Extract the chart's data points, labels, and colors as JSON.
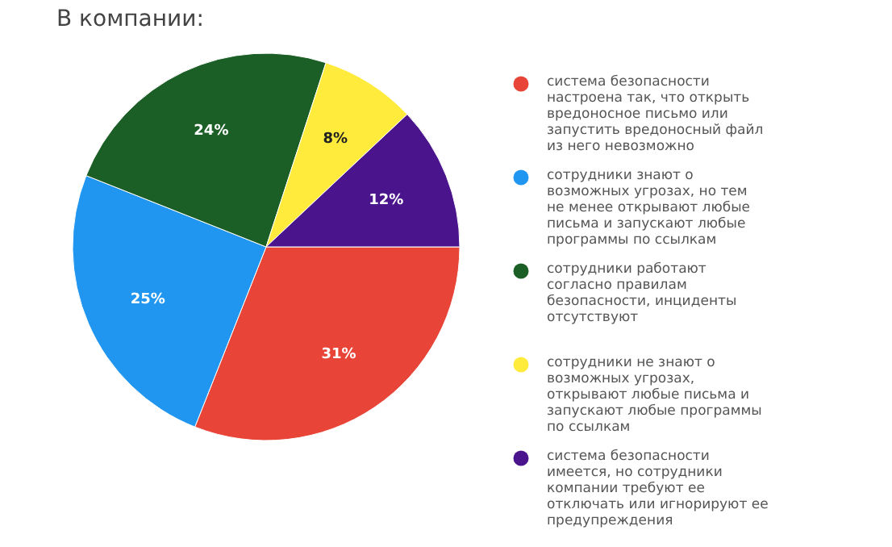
{
  "chart_data": {
    "type": "pie",
    "title": "В компании:",
    "legend": "right",
    "categories": [
      "система безопасности настроена так, что открыть вредоносное письмо или запустить вредоносный файл из него невозможно",
      "сотрудники знают о возможных угрозах, но тем не менее открывают любые письма и запускают любые программы по ссылкам",
      "сотрудники работают согласно правилам безопасности, инциденты отсутствуют",
      "сотрудники не знают о возможных угрозах, открывают любые письма и запускают любые программы по ссылкам",
      "система безопасности имеется, но сотрудники компании требуют ее отключать или игнорируют ее предупреждения"
    ],
    "values": [
      31,
      25,
      24,
      8,
      12
    ],
    "value_labels": [
      "31%",
      "25%",
      "24%",
      "8%",
      "12%"
    ],
    "colors": [
      "#e84437",
      "#2196f0",
      "#1b5e26",
      "#ffeb3b",
      "#4a148c"
    ]
  }
}
